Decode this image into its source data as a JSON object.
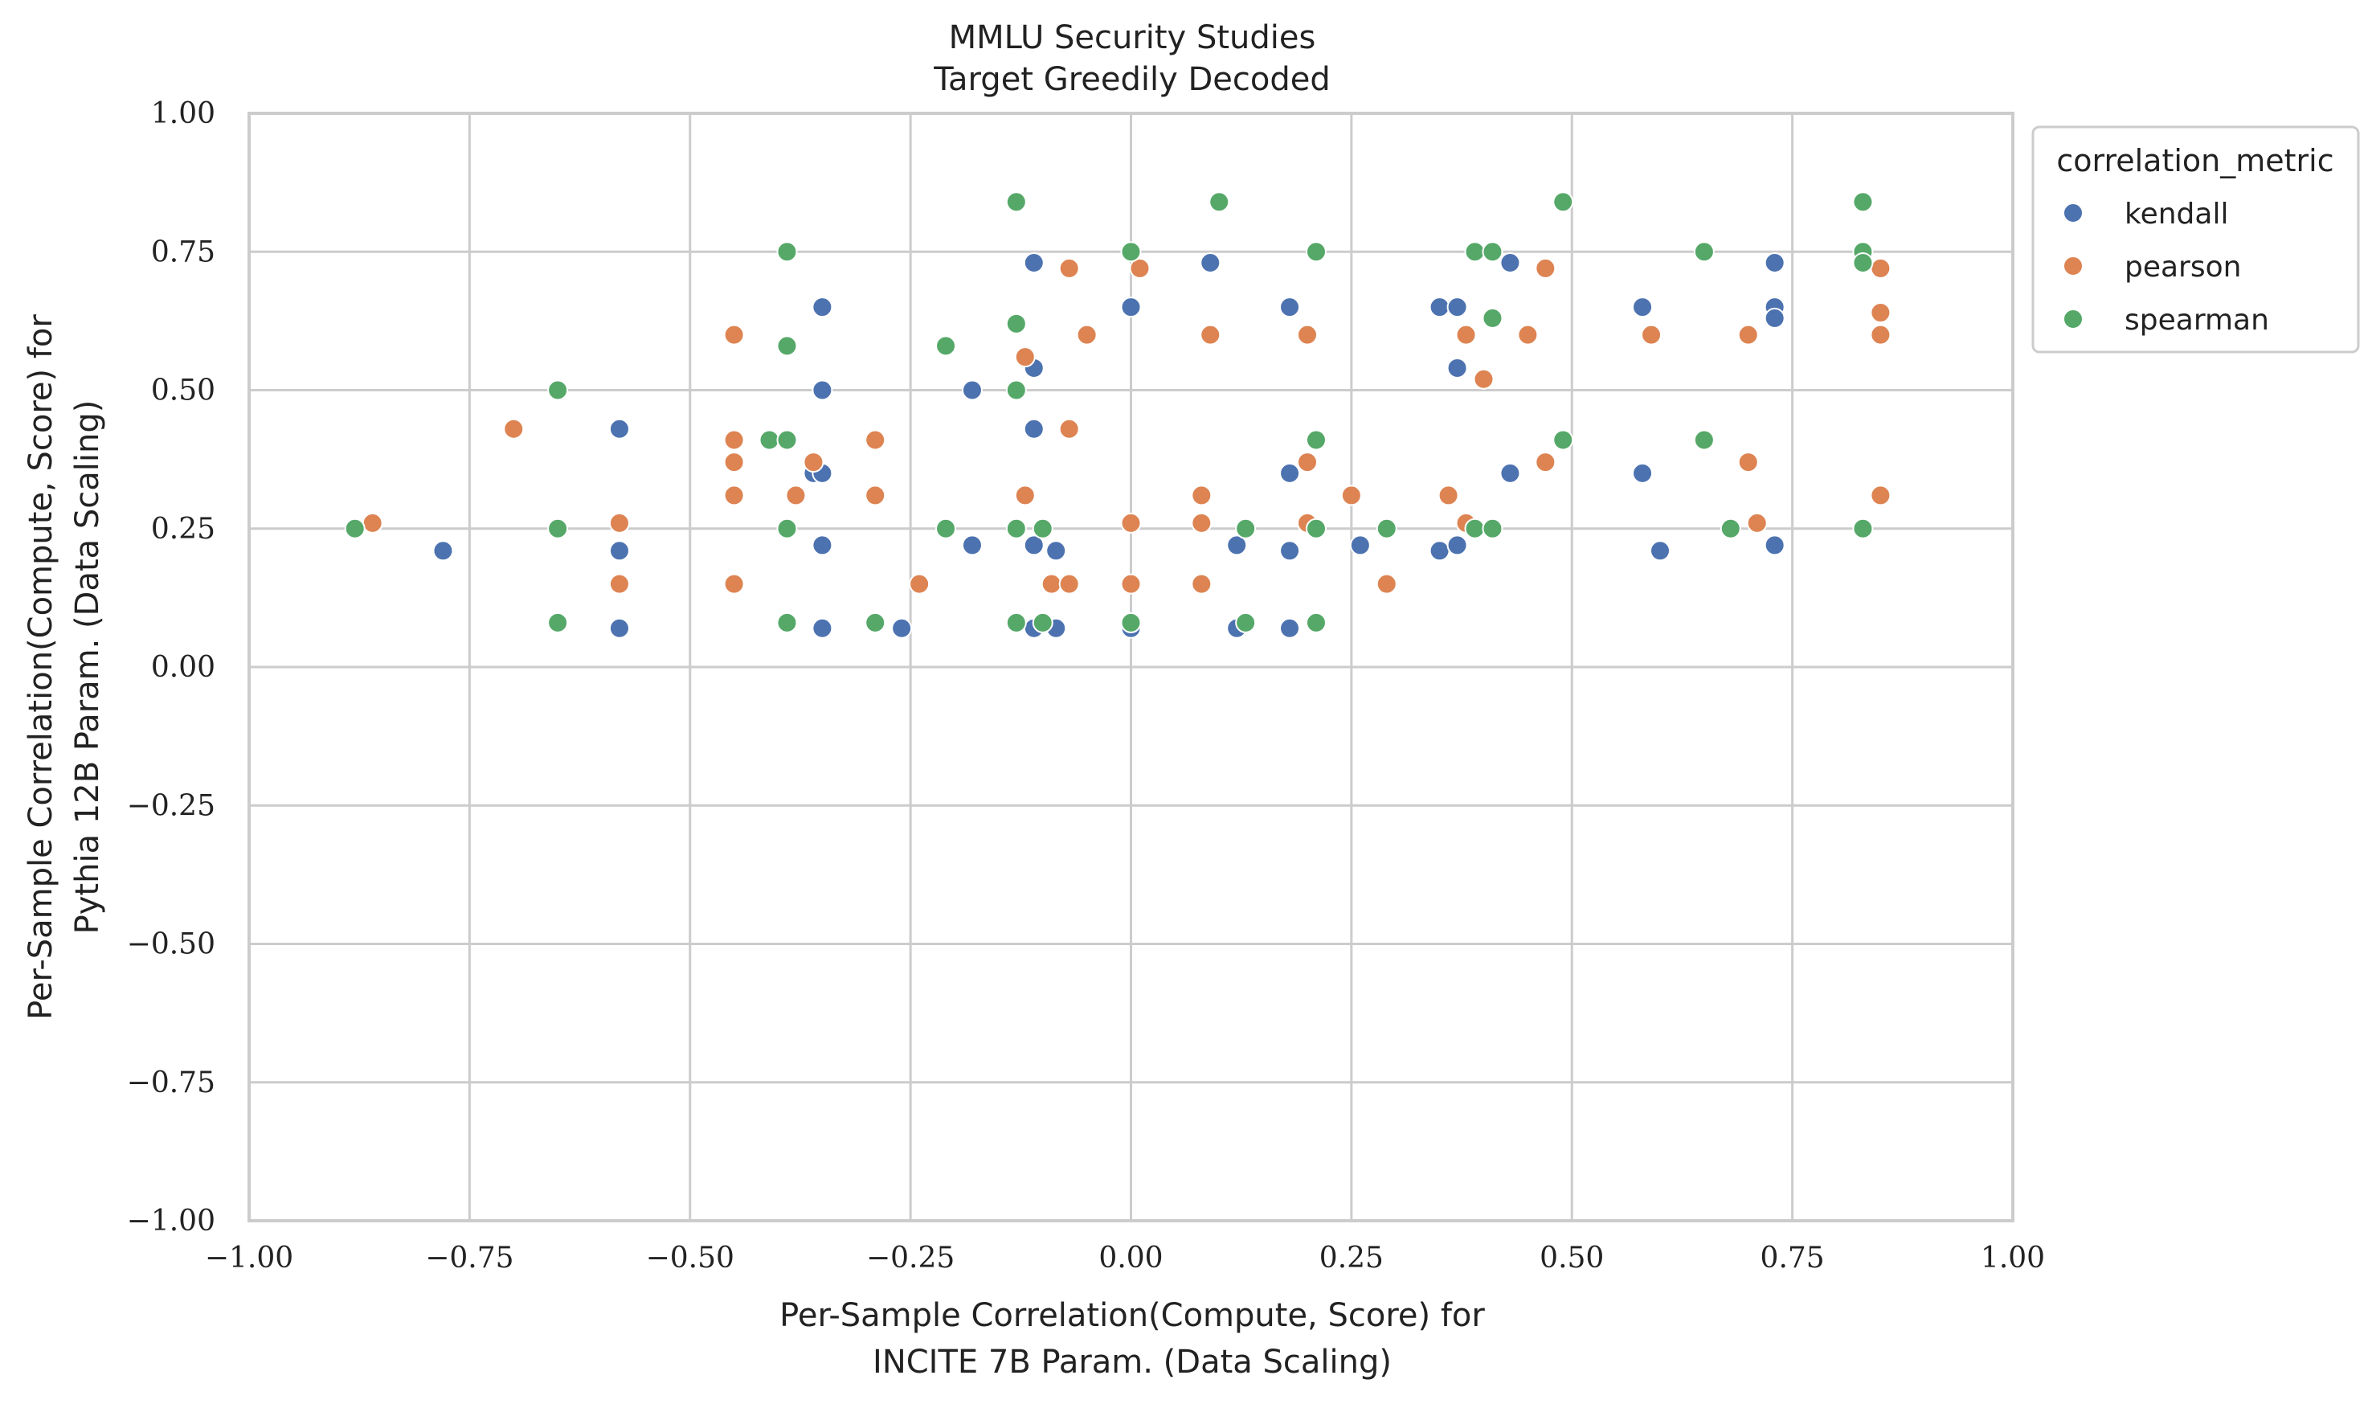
{
  "chart_data": {
    "type": "scatter",
    "title": "MMLU Security Studies",
    "subtitle": "Target Greedily Decoded",
    "xlabel": [
      "Per-Sample Correlation(Compute, Score) for",
      "INCITE 7B Param. (Data Scaling)"
    ],
    "ylabel": [
      "Per-Sample Correlation(Compute, Score) for",
      "Pythia 12B Param. (Data Scaling)"
    ],
    "xlim": [
      -1.0,
      1.0
    ],
    "ylim": [
      -1.0,
      1.0
    ],
    "xticks": [
      -1.0,
      -0.75,
      -0.5,
      -0.25,
      0.0,
      0.25,
      0.5,
      0.75,
      1.0
    ],
    "yticks": [
      -1.0,
      -0.75,
      -0.5,
      -0.25,
      0.0,
      0.25,
      0.5,
      0.75,
      1.0
    ],
    "xtick_labels": [
      "−1.00",
      "−0.75",
      "−0.50",
      "−0.25",
      "0.00",
      "0.25",
      "0.50",
      "0.75",
      "1.00"
    ],
    "ytick_labels": [
      "−1.00",
      "−0.75",
      "−0.50",
      "−0.25",
      "0.00",
      "0.25",
      "0.50",
      "0.75",
      "1.00"
    ],
    "grid": true,
    "legend": {
      "title": "correlation_metric",
      "placement": "outside-right-top"
    },
    "series": [
      {
        "name": "kendall",
        "color": "#4c72b0",
        "points": [
          [
            -0.78,
            0.21
          ],
          [
            -0.58,
            0.43
          ],
          [
            -0.58,
            0.21
          ],
          [
            -0.58,
            0.07
          ],
          [
            -0.36,
            0.35
          ],
          [
            -0.35,
            0.65
          ],
          [
            -0.35,
            0.5
          ],
          [
            -0.35,
            0.35
          ],
          [
            -0.35,
            0.22
          ],
          [
            -0.35,
            0.07
          ],
          [
            -0.26,
            0.07
          ],
          [
            -0.18,
            0.5
          ],
          [
            -0.18,
            0.22
          ],
          [
            -0.11,
            0.73
          ],
          [
            -0.11,
            0.54
          ],
          [
            -0.11,
            0.43
          ],
          [
            -0.11,
            0.22
          ],
          [
            -0.11,
            0.07
          ],
          [
            -0.085,
            0.21
          ],
          [
            -0.085,
            0.07
          ],
          [
            0.0,
            0.65
          ],
          [
            0.0,
            0.07
          ],
          [
            0.09,
            0.73
          ],
          [
            0.12,
            0.22
          ],
          [
            0.12,
            0.07
          ],
          [
            0.18,
            0.65
          ],
          [
            0.18,
            0.35
          ],
          [
            0.18,
            0.21
          ],
          [
            0.18,
            0.07
          ],
          [
            0.26,
            0.22
          ],
          [
            0.35,
            0.65
          ],
          [
            0.35,
            0.21
          ],
          [
            0.37,
            0.65
          ],
          [
            0.37,
            0.54
          ],
          [
            0.37,
            0.22
          ],
          [
            0.43,
            0.73
          ],
          [
            0.43,
            0.35
          ],
          [
            0.58,
            0.65
          ],
          [
            0.58,
            0.35
          ],
          [
            0.6,
            0.21
          ],
          [
            0.73,
            0.73
          ],
          [
            0.73,
            0.65
          ],
          [
            0.73,
            0.63
          ],
          [
            0.73,
            0.22
          ]
        ]
      },
      {
        "name": "pearson",
        "color": "#dd8452",
        "points": [
          [
            -0.86,
            0.26
          ],
          [
            -0.7,
            0.43
          ],
          [
            -0.58,
            0.26
          ],
          [
            -0.58,
            0.15
          ],
          [
            -0.45,
            0.6
          ],
          [
            -0.45,
            0.41
          ],
          [
            -0.45,
            0.37
          ],
          [
            -0.45,
            0.31
          ],
          [
            -0.45,
            0.15
          ],
          [
            -0.38,
            0.31
          ],
          [
            -0.36,
            0.37
          ],
          [
            -0.29,
            0.41
          ],
          [
            -0.29,
            0.31
          ],
          [
            -0.24,
            0.15
          ],
          [
            -0.12,
            0.56
          ],
          [
            -0.12,
            0.31
          ],
          [
            -0.09,
            0.15
          ],
          [
            -0.07,
            0.72
          ],
          [
            -0.07,
            0.43
          ],
          [
            -0.07,
            0.15
          ],
          [
            -0.05,
            0.6
          ],
          [
            0.0,
            0.26
          ],
          [
            0.0,
            0.15
          ],
          [
            0.01,
            0.72
          ],
          [
            0.08,
            0.31
          ],
          [
            0.08,
            0.26
          ],
          [
            0.08,
            0.15
          ],
          [
            0.09,
            0.6
          ],
          [
            0.2,
            0.6
          ],
          [
            0.2,
            0.37
          ],
          [
            0.2,
            0.26
          ],
          [
            0.25,
            0.31
          ],
          [
            0.29,
            0.15
          ],
          [
            0.36,
            0.31
          ],
          [
            0.38,
            0.6
          ],
          [
            0.38,
            0.26
          ],
          [
            0.4,
            0.52
          ],
          [
            0.45,
            0.6
          ],
          [
            0.47,
            0.72
          ],
          [
            0.47,
            0.37
          ],
          [
            0.59,
            0.6
          ],
          [
            0.7,
            0.6
          ],
          [
            0.7,
            0.37
          ],
          [
            0.71,
            0.26
          ],
          [
            0.85,
            0.72
          ],
          [
            0.85,
            0.64
          ],
          [
            0.85,
            0.6
          ],
          [
            0.85,
            0.31
          ]
        ]
      },
      {
        "name": "spearman",
        "color": "#55a868",
        "points": [
          [
            -0.88,
            0.25
          ],
          [
            -0.65,
            0.5
          ],
          [
            -0.65,
            0.25
          ],
          [
            -0.65,
            0.08
          ],
          [
            -0.41,
            0.41
          ],
          [
            -0.39,
            0.75
          ],
          [
            -0.39,
            0.58
          ],
          [
            -0.39,
            0.41
          ],
          [
            -0.39,
            0.25
          ],
          [
            -0.39,
            0.08
          ],
          [
            -0.29,
            0.08
          ],
          [
            -0.21,
            0.58
          ],
          [
            -0.21,
            0.25
          ],
          [
            -0.13,
            0.84
          ],
          [
            -0.13,
            0.62
          ],
          [
            -0.13,
            0.5
          ],
          [
            -0.13,
            0.25
          ],
          [
            -0.13,
            0.08
          ],
          [
            -0.1,
            0.25
          ],
          [
            -0.1,
            0.08
          ],
          [
            0.0,
            0.75
          ],
          [
            0.0,
            0.08
          ],
          [
            0.1,
            0.84
          ],
          [
            0.13,
            0.25
          ],
          [
            0.13,
            0.08
          ],
          [
            0.21,
            0.75
          ],
          [
            0.21,
            0.41
          ],
          [
            0.21,
            0.25
          ],
          [
            0.21,
            0.08
          ],
          [
            0.29,
            0.25
          ],
          [
            0.39,
            0.75
          ],
          [
            0.39,
            0.25
          ],
          [
            0.41,
            0.75
          ],
          [
            0.41,
            0.63
          ],
          [
            0.41,
            0.25
          ],
          [
            0.49,
            0.84
          ],
          [
            0.49,
            0.41
          ],
          [
            0.65,
            0.75
          ],
          [
            0.65,
            0.41
          ],
          [
            0.68,
            0.25
          ],
          [
            0.83,
            0.84
          ],
          [
            0.83,
            0.75
          ],
          [
            0.83,
            0.73
          ],
          [
            0.83,
            0.25
          ]
        ]
      }
    ]
  }
}
